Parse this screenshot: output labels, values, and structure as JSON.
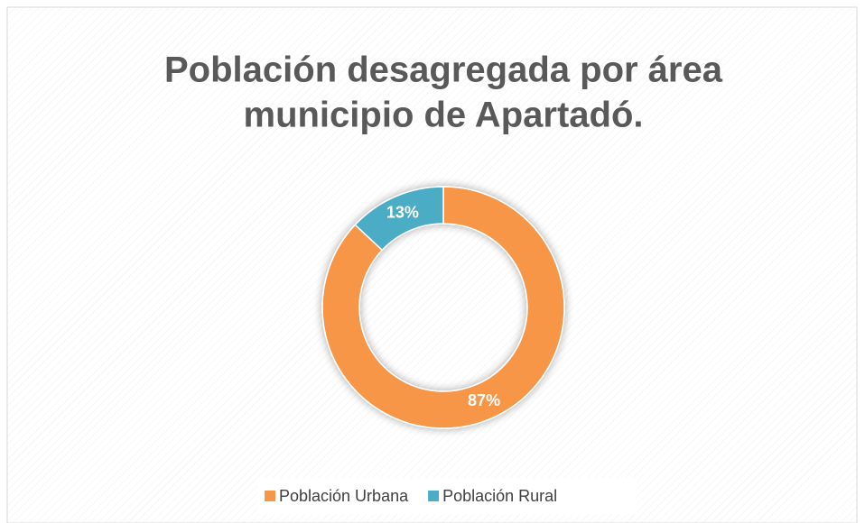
{
  "chart_data": {
    "type": "donut",
    "title": [
      "Población desagregada por área",
      "municipio de Apartadó."
    ],
    "categories": [
      "Población Urbana",
      "Población Rural"
    ],
    "values": [
      87,
      13
    ],
    "value_labels": [
      "87%",
      "13%"
    ],
    "colors": [
      "#f79646",
      "#4bacc6"
    ],
    "legend": "bottom"
  }
}
